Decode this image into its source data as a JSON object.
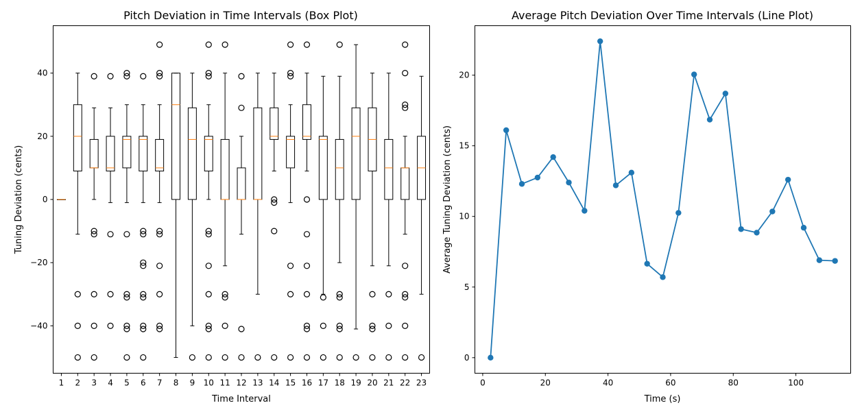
{
  "chart_data": [
    {
      "type": "box",
      "title": "Pitch Deviation in Time Intervals (Box Plot)",
      "xlabel": "Time Interval",
      "ylabel": "Tuning Deviation (cents)",
      "ylim": [
        -55,
        55
      ],
      "yticks": [
        -40,
        -20,
        0,
        20,
        40
      ],
      "categories": [
        "1",
        "2",
        "3",
        "4",
        "5",
        "6",
        "7",
        "8",
        "9",
        "10",
        "11",
        "12",
        "13",
        "14",
        "15",
        "16",
        "17",
        "18",
        "19",
        "20",
        "21",
        "22",
        "23"
      ],
      "box_color": "#000000",
      "median_color": "#ff7f0e",
      "boxes": [
        {
          "q1": 0,
          "median": 0,
          "q3": 0,
          "whislo": 0,
          "whishi": 0,
          "fliers": []
        },
        {
          "q1": 9,
          "median": 20,
          "q3": 30,
          "whislo": -11,
          "whishi": 40,
          "fliers": [
            -30,
            -40,
            -50
          ]
        },
        {
          "q1": 10,
          "median": 10,
          "q3": 19,
          "whislo": 0,
          "whishi": 29,
          "fliers": [
            39,
            -10,
            -11,
            -30,
            -40,
            -50
          ]
        },
        {
          "q1": 9,
          "median": 10,
          "q3": 20,
          "whislo": -1,
          "whishi": 29,
          "fliers": [
            39,
            -11,
            -30,
            -40
          ]
        },
        {
          "q1": 10,
          "median": 19,
          "q3": 20,
          "whislo": -1,
          "whishi": 30,
          "fliers": [
            40,
            39,
            -11,
            -30,
            -31,
            -40,
            -41,
            -50
          ]
        },
        {
          "q1": 9,
          "median": 19,
          "q3": 20,
          "whislo": -1,
          "whishi": 30,
          "fliers": [
            39,
            -10,
            -11,
            -20,
            -21,
            -30,
            -31,
            -40,
            -41,
            -50
          ]
        },
        {
          "q1": 9,
          "median": 10,
          "q3": 19,
          "whislo": -1,
          "whishi": 30,
          "fliers": [
            49,
            40,
            39,
            -10,
            -11,
            -21,
            -30,
            -40,
            -41
          ]
        },
        {
          "q1": 0,
          "median": 30,
          "q3": 40,
          "whislo": -50,
          "whishi": 40,
          "fliers": []
        },
        {
          "q1": 0,
          "median": 19,
          "q3": 29,
          "whislo": -40,
          "whishi": 40,
          "fliers": [
            -50
          ]
        },
        {
          "q1": 9,
          "median": 19,
          "q3": 20,
          "whislo": 0,
          "whishi": 30,
          "fliers": [
            49,
            40,
            39,
            -10,
            -11,
            -21,
            -30,
            -40,
            -41,
            -50
          ]
        },
        {
          "q1": 0,
          "median": 0,
          "q3": 19,
          "whislo": -21,
          "whishi": 40,
          "fliers": [
            49,
            -30,
            -31,
            -40,
            -50
          ]
        },
        {
          "q1": 0,
          "median": 0,
          "q3": 10,
          "whislo": -11,
          "whishi": 20,
          "fliers": [
            39,
            29,
            -41,
            -50
          ]
        },
        {
          "q1": 0,
          "median": 0,
          "q3": 29,
          "whislo": -30,
          "whishi": 40,
          "fliers": [
            -50
          ]
        },
        {
          "q1": 19,
          "median": 20,
          "q3": 29,
          "whislo": 9,
          "whishi": 40,
          "fliers": [
            0,
            -1,
            -10,
            -50
          ]
        },
        {
          "q1": 10,
          "median": 19,
          "q3": 20,
          "whislo": -1,
          "whishi": 30,
          "fliers": [
            49,
            40,
            39,
            -21,
            -30,
            -50
          ]
        },
        {
          "q1": 19,
          "median": 20,
          "q3": 30,
          "whislo": 9,
          "whishi": 40,
          "fliers": [
            49,
            0,
            -11,
            -21,
            -30,
            -40,
            -41,
            -50
          ]
        },
        {
          "q1": 0,
          "median": 19,
          "q3": 20,
          "whislo": -30,
          "whishi": 39,
          "fliers": [
            -31,
            -40,
            -50
          ]
        },
        {
          "q1": 0,
          "median": 10,
          "q3": 19,
          "whislo": -20,
          "whishi": 39,
          "fliers": [
            49,
            -30,
            -31,
            -40,
            -41,
            -50
          ]
        },
        {
          "q1": 0,
          "median": 20,
          "q3": 29,
          "whislo": -41,
          "whishi": 49,
          "fliers": [
            -50
          ]
        },
        {
          "q1": 9,
          "median": 19,
          "q3": 29,
          "whislo": -21,
          "whishi": 40,
          "fliers": [
            -30,
            -40,
            -41,
            -50
          ]
        },
        {
          "q1": 0,
          "median": 10,
          "q3": 19,
          "whislo": -21,
          "whishi": 40,
          "fliers": [
            -30,
            -40,
            -50
          ]
        },
        {
          "q1": 0,
          "median": 10,
          "q3": 10,
          "whislo": -11,
          "whishi": 20,
          "fliers": [
            49,
            40,
            30,
            29,
            -21,
            -30,
            -31,
            -40,
            -50
          ]
        },
        {
          "q1": 0,
          "median": 10,
          "q3": 20,
          "whislo": -30,
          "whishi": 39,
          "fliers": [
            -50
          ]
        }
      ]
    },
    {
      "type": "line",
      "title": "Average Pitch Deviation Over Time Intervals (Line Plot)",
      "xlabel": "Time (s)",
      "ylabel": "Average Tuning Deviation (cents)",
      "xlim": [
        -2.5,
        117.5
      ],
      "ylim": [
        -1.1,
        23.5
      ],
      "xticks": [
        0,
        20,
        40,
        60,
        80,
        100
      ],
      "yticks": [
        0,
        5,
        10,
        15,
        20
      ],
      "color": "#1f77b4",
      "x": [
        2.5,
        7.5,
        12.5,
        17.5,
        22.5,
        27.5,
        32.5,
        37.5,
        42.5,
        47.5,
        52.5,
        57.5,
        62.5,
        67.5,
        72.5,
        77.5,
        82.5,
        87.5,
        92.5,
        97.5,
        102.5,
        107.5,
        112.5
      ],
      "y": [
        0,
        16.1,
        12.3,
        12.75,
        14.2,
        12.4,
        10.4,
        22.4,
        12.2,
        13.1,
        6.65,
        5.7,
        10.25,
        20.05,
        16.85,
        18.7,
        9.1,
        8.85,
        10.35,
        12.6,
        9.2,
        6.9,
        6.85
      ]
    }
  ]
}
